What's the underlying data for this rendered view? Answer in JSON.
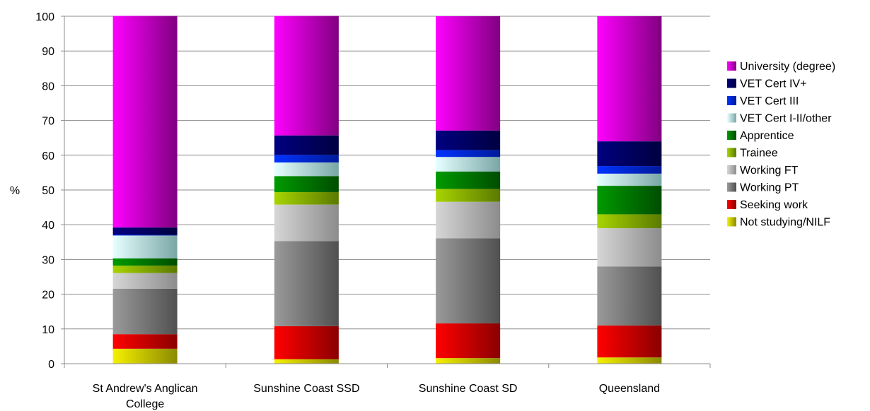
{
  "chart_data": {
    "type": "bar",
    "stacked": true,
    "ylabel": "%",
    "ylim": [
      0,
      100
    ],
    "yticks": [
      "0",
      "10",
      "20",
      "30",
      "40",
      "50",
      "60",
      "70",
      "80",
      "90",
      "100"
    ],
    "grid": true,
    "legend_position": "right",
    "categories": [
      [
        "St Andrew's Anglican",
        "College"
      ],
      [
        "Sunshine Coast SSD"
      ],
      [
        "Sunshine Coast SD"
      ],
      [
        "Queensland"
      ]
    ],
    "series": [
      {
        "name": "Not studying/NILF",
        "color": "#f5f000",
        "colorDark": "#8a8a00",
        "values": [
          4.3,
          1.3,
          1.6,
          1.8
        ]
      },
      {
        "name": "Seeking work",
        "color": "#ff0000",
        "colorDark": "#8a0000",
        "values": [
          4.2,
          9.5,
          10.0,
          9.2
        ]
      },
      {
        "name": "Working PT",
        "color": "#9a9a9a",
        "colorDark": "#505050",
        "values": [
          13.1,
          24.5,
          24.5,
          17.0
        ]
      },
      {
        "name": "Working FT",
        "color": "#d6d6d6",
        "colorDark": "#8c8c8c",
        "values": [
          4.5,
          10.5,
          10.5,
          11.0
        ]
      },
      {
        "name": "Trainee",
        "color": "#a8d400",
        "colorDark": "#5a7a00",
        "values": [
          2.1,
          3.6,
          3.7,
          4.0
        ]
      },
      {
        "name": "Apprentice",
        "color": "#009a00",
        "colorDark": "#004d00",
        "values": [
          2.1,
          4.6,
          5.0,
          8.2
        ]
      },
      {
        "name": "VET Cert I-II/other",
        "color": "#e6ffff",
        "colorDark": "#7aa6a6",
        "values": [
          6.6,
          3.9,
          4.2,
          3.5
        ]
      },
      {
        "name": "VET Cert III",
        "color": "#0033ff",
        "colorDark": "#001a99",
        "values": [
          0.2,
          2.2,
          2.0,
          2.2
        ]
      },
      {
        "name": "VET Cert IV+",
        "color": "#000080",
        "colorDark": "#000040",
        "values": [
          2.1,
          5.6,
          5.6,
          7.1
        ]
      },
      {
        "name": "University (degree)",
        "color": "#ff00ff",
        "colorDark": "#800080",
        "values": [
          60.9,
          34.4,
          32.9,
          36.0
        ]
      }
    ]
  }
}
